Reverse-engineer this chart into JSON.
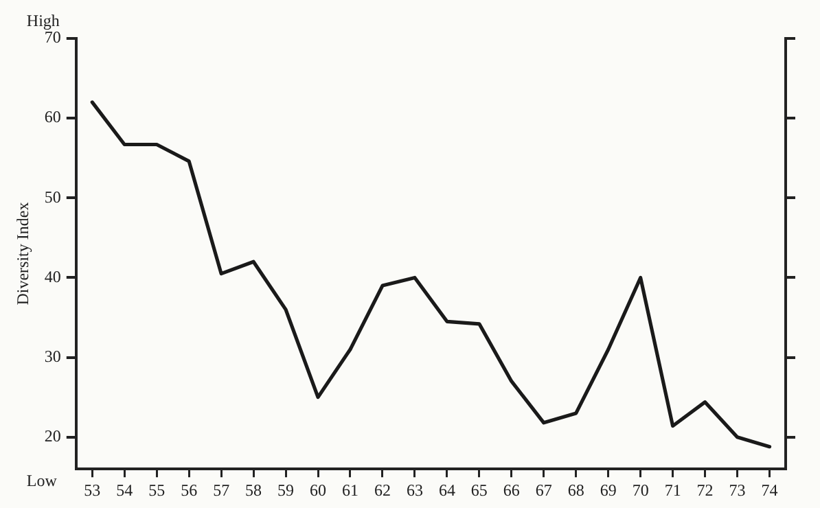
{
  "chart_data": {
    "type": "line",
    "ylabel": "Diversity Index",
    "categories": [
      "53",
      "54",
      "55",
      "56",
      "57",
      "58",
      "59",
      "60",
      "61",
      "62",
      "63",
      "64",
      "65",
      "66",
      "67",
      "68",
      "69",
      "70",
      "71",
      "72",
      "73",
      "74"
    ],
    "series": [
      {
        "color": "#1a1a1a",
        "values": [
          62,
          56.7,
          56.7,
          54.6,
          40.5,
          42,
          36,
          25,
          31,
          39,
          40,
          34.5,
          34.2,
          27,
          21.8,
          23,
          31,
          40,
          21.4,
          24.4,
          20,
          18.8
        ]
      }
    ],
    "ylim": [
      16,
      70
    ],
    "yticks": [
      20,
      30,
      40,
      50,
      60,
      70
    ],
    "annotations": [
      "High",
      "Low"
    ],
    "grid": false,
    "legend": false,
    "marker": "none",
    "line_style": "solid"
  }
}
